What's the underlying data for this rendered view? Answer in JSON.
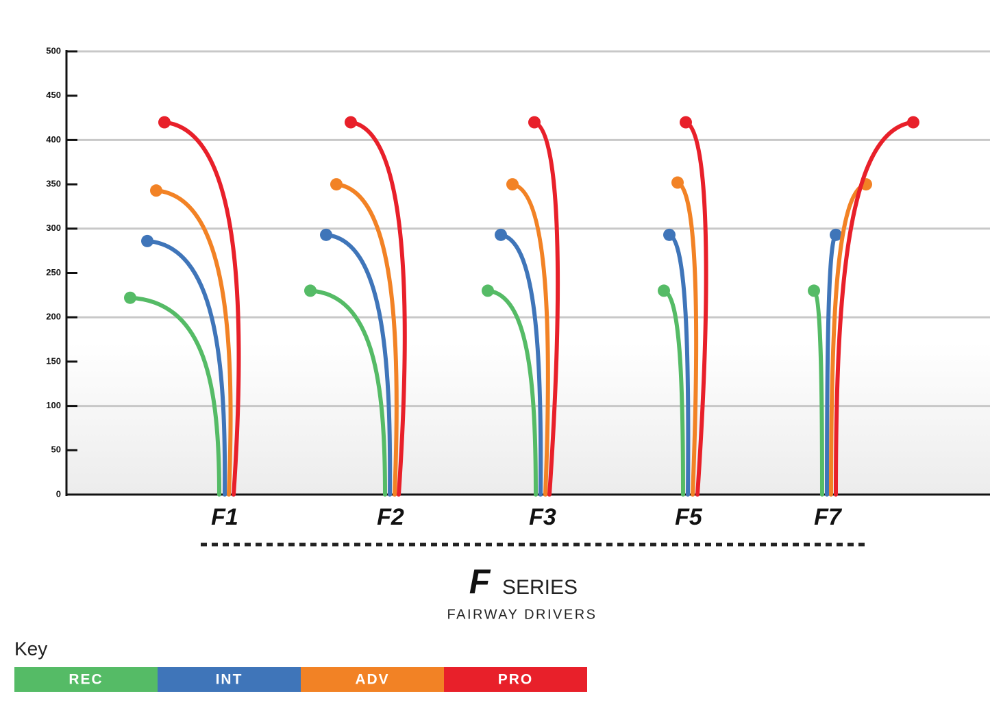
{
  "chart_data": {
    "type": "flight",
    "categories": [
      "F1",
      "F2",
      "F3",
      "F5",
      "F7"
    ],
    "series": [
      {
        "name": "REC",
        "color": "#55bb66",
        "values": [
          222,
          230,
          230,
          230,
          230
        ]
      },
      {
        "name": "INT",
        "color": "#3f75b9",
        "values": [
          286,
          293,
          293,
          293,
          293
        ]
      },
      {
        "name": "ADV",
        "color": "#f28225",
        "values": [
          343,
          350,
          350,
          352,
          350
        ]
      },
      {
        "name": "PRO",
        "color": "#e8202a",
        "values": [
          420,
          420,
          420,
          420,
          420
        ]
      }
    ],
    "ylim": [
      0,
      500
    ],
    "yticks": [
      0,
      50,
      100,
      150,
      200,
      250,
      300,
      350,
      400,
      450,
      500
    ],
    "grid": true,
    "logo": "F",
    "title": "SERIES",
    "subtitle": "FAIRWAY DRIVERS",
    "legend_title": "Key"
  }
}
